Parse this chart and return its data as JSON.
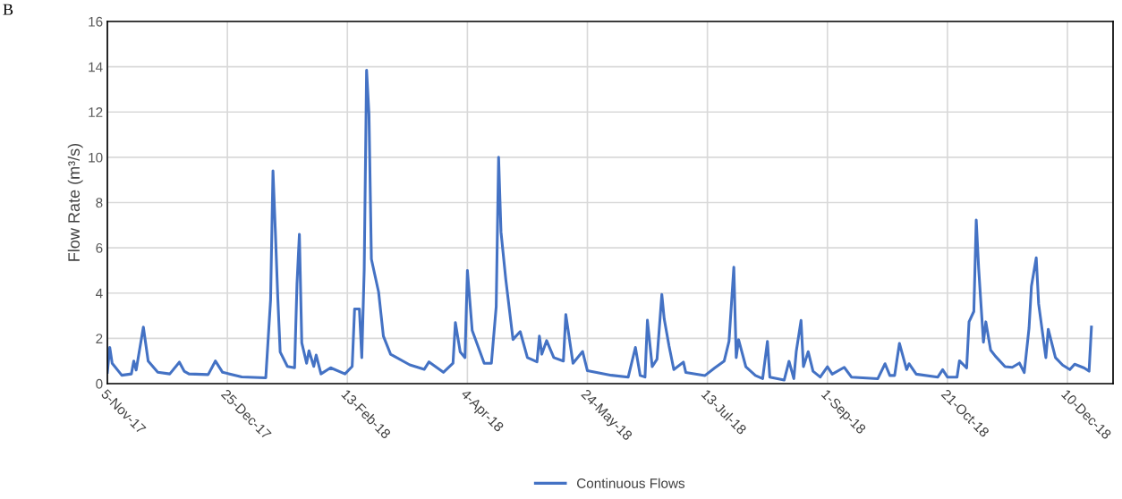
{
  "chart_data": {
    "type": "line",
    "ylabel": "Flow Rate (m³/s)",
    "annotations": [
      "B"
    ],
    "xlim": [
      "2017-11-05",
      "2018-12-29"
    ],
    "xticks": [
      {
        "value": "2017-11-05",
        "label": "5-Nov-17"
      },
      {
        "value": "2017-12-25",
        "label": "25-Dec-17"
      },
      {
        "value": "2018-02-13",
        "label": "13-Feb-18"
      },
      {
        "value": "2018-04-04",
        "label": "4-Apr-18"
      },
      {
        "value": "2018-05-24",
        "label": "24-May-18"
      },
      {
        "value": "2018-07-13",
        "label": "13-Jul-18"
      },
      {
        "value": "2018-09-01",
        "label": "1-Sep-18"
      },
      {
        "value": "2018-10-21",
        "label": "21-Oct-18"
      },
      {
        "value": "2018-12-10",
        "label": "10-Dec-18"
      }
    ],
    "ylim": [
      0,
      16
    ],
    "yticks": [
      0,
      2,
      4,
      6,
      8,
      10,
      12,
      14,
      16
    ],
    "grid": true,
    "legend": "bottom",
    "marker": "none",
    "line_style": "solid",
    "x": [
      "2017-11-05",
      "2017-11-06",
      "2017-11-07",
      "2017-11-11",
      "2017-11-15",
      "2017-11-16",
      "2017-11-17",
      "2017-11-20",
      "2017-11-22",
      "2017-11-26",
      "2017-12-01",
      "2017-12-05",
      "2017-12-07",
      "2017-12-09",
      "2017-12-17",
      "2017-12-20",
      "2017-12-23",
      "2017-12-31",
      "2018-01-10",
      "2018-01-12",
      "2018-01-13",
      "2018-01-14",
      "2018-01-15",
      "2018-01-16",
      "2018-01-19",
      "2018-01-22",
      "2018-01-23",
      "2018-01-24",
      "2018-01-25",
      "2018-01-27",
      "2018-01-28",
      "2018-01-30",
      "2018-01-31",
      "2018-02-02",
      "2018-02-06",
      "2018-02-12",
      "2018-02-15",
      "2018-02-16",
      "2018-02-18",
      "2018-02-19",
      "2018-02-20",
      "2018-02-21",
      "2018-02-22",
      "2018-02-23",
      "2018-02-26",
      "2018-02-28",
      "2018-03-03",
      "2018-03-11",
      "2018-03-17",
      "2018-03-19",
      "2018-03-25",
      "2018-03-29",
      "2018-03-30",
      "2018-04-01",
      "2018-04-03",
      "2018-04-04",
      "2018-04-06",
      "2018-04-11",
      "2018-04-14",
      "2018-04-16",
      "2018-04-17",
      "2018-04-18",
      "2018-04-20",
      "2018-04-23",
      "2018-04-26",
      "2018-04-29",
      "2018-05-03",
      "2018-05-04",
      "2018-05-05",
      "2018-05-07",
      "2018-05-10",
      "2018-05-14",
      "2018-05-15",
      "2018-05-18",
      "2018-05-22",
      "2018-05-24",
      "2018-06-03",
      "2018-06-10",
      "2018-06-13",
      "2018-06-15",
      "2018-06-17",
      "2018-06-18",
      "2018-06-20",
      "2018-06-22",
      "2018-06-24",
      "2018-06-25",
      "2018-06-27",
      "2018-06-29",
      "2018-07-03",
      "2018-07-04",
      "2018-07-12",
      "2018-07-16",
      "2018-07-20",
      "2018-07-22",
      "2018-07-24",
      "2018-07-25",
      "2018-07-26",
      "2018-07-29",
      "2018-08-02",
      "2018-08-05",
      "2018-08-07",
      "2018-08-08",
      "2018-08-14",
      "2018-08-16",
      "2018-08-18",
      "2018-08-19",
      "2018-08-21",
      "2018-08-22",
      "2018-08-24",
      "2018-08-26",
      "2018-08-29",
      "2018-09-01",
      "2018-09-03",
      "2018-09-08",
      "2018-09-11",
      "2018-09-22",
      "2018-09-25",
      "2018-09-27",
      "2018-09-29",
      "2018-09-30",
      "2018-10-01",
      "2018-10-04",
      "2018-10-05",
      "2018-10-08",
      "2018-10-17",
      "2018-10-19",
      "2018-10-21",
      "2018-10-25",
      "2018-10-26",
      "2018-10-29",
      "2018-10-30",
      "2018-11-01",
      "2018-11-02",
      "2018-11-03",
      "2018-11-05",
      "2018-11-06",
      "2018-11-08",
      "2018-11-10",
      "2018-11-14",
      "2018-11-17",
      "2018-11-20",
      "2018-11-22",
      "2018-11-24",
      "2018-11-25",
      "2018-11-27",
      "2018-11-28",
      "2018-12-01",
      "2018-12-02",
      "2018-12-05",
      "2018-12-08",
      "2018-12-11",
      "2018-12-13",
      "2018-12-17",
      "2018-12-19",
      "2018-12-20"
    ],
    "series": [
      {
        "name": "Continuous Flows",
        "color": "#4472c4",
        "values": [
          0.5,
          1.6,
          0.9,
          0.37,
          0.43,
          1.0,
          0.6,
          2.5,
          1.0,
          0.5,
          0.43,
          0.95,
          0.55,
          0.43,
          0.4,
          1.0,
          0.5,
          0.3,
          0.26,
          3.7,
          9.4,
          6.7,
          3.8,
          1.4,
          0.76,
          0.7,
          4.4,
          6.6,
          1.8,
          0.9,
          1.45,
          0.76,
          1.26,
          0.43,
          0.7,
          0.43,
          0.76,
          3.3,
          3.3,
          1.15,
          5.0,
          13.85,
          11.9,
          5.5,
          4.05,
          2.1,
          1.3,
          0.83,
          0.63,
          0.96,
          0.5,
          0.9,
          2.7,
          1.4,
          1.15,
          5.0,
          2.35,
          0.9,
          0.9,
          3.4,
          10.0,
          6.7,
          4.6,
          1.95,
          2.3,
          1.15,
          0.96,
          2.1,
          1.3,
          1.9,
          1.15,
          1.0,
          3.05,
          0.9,
          1.42,
          0.57,
          0.37,
          0.29,
          1.6,
          0.36,
          0.29,
          2.8,
          0.75,
          1.08,
          3.94,
          2.86,
          1.67,
          0.62,
          0.95,
          0.49,
          0.36,
          0.69,
          1.0,
          1.87,
          5.14,
          1.15,
          1.94,
          0.75,
          0.36,
          0.22,
          1.87,
          0.29,
          0.16,
          0.99,
          0.22,
          1.41,
          2.79,
          0.75,
          1.41,
          0.55,
          0.29,
          0.75,
          0.42,
          0.72,
          0.29,
          0.22,
          0.88,
          0.36,
          0.36,
          1.08,
          1.78,
          0.62,
          0.88,
          0.42,
          0.29,
          0.62,
          0.29,
          0.29,
          1.01,
          0.69,
          2.73,
          3.19,
          7.23,
          5.1,
          1.83,
          2.73,
          1.48,
          1.21,
          0.75,
          0.72,
          0.91,
          0.49,
          2.46,
          4.31,
          5.56,
          3.52,
          1.15,
          2.4,
          1.15,
          0.82,
          0.62,
          0.86,
          0.69,
          0.55,
          2.5
        ]
      }
    ]
  }
}
